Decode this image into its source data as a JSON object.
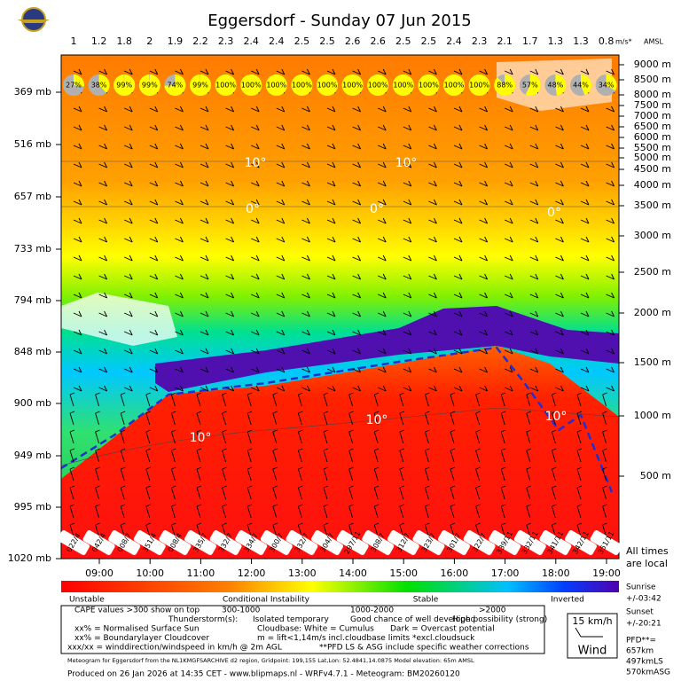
{
  "chart_data": {
    "type": "meteogram",
    "title": "Eggersdorf - Sunday 07 Jun 2015",
    "lift_values": [
      1,
      1.2,
      1.8,
      2,
      1.9,
      2.2,
      2.3,
      2.4,
      2.4,
      2.5,
      2.5,
      2.6,
      2.6,
      2.5,
      2.5,
      2.4,
      2.3,
      2.1,
      1.7,
      1.3,
      1.3,
      0.8
    ],
    "lift_unit": "m/s*",
    "altitude_reference": "AMSL",
    "cloudcover": [
      27,
      38,
      99,
      99,
      74,
      99,
      100,
      100,
      100,
      100,
      100,
      100,
      100,
      100,
      100,
      100,
      100,
      88,
      57,
      48,
      44,
      34
    ],
    "cloudcover_labels": [
      "27%",
      "38%",
      "99%",
      "99%",
      "74%",
      "99%",
      "100%",
      "100%",
      "100%",
      "100%",
      "100%",
      "100%",
      "100%",
      "100%",
      "100%",
      "100%",
      "100%",
      "88%",
      "57%",
      "48%",
      "44%",
      "34%"
    ],
    "pressure_labels": [
      "369 mb",
      "516 mb",
      "657 mb",
      "733 mb",
      "794 mb",
      "848 mb",
      "900 mb",
      "949 mb",
      "995 mb",
      "1020 mb"
    ],
    "altitude_labels": [
      "9000 m",
      "8500 m",
      "8000 m",
      "7500 m",
      "7000 m",
      "6500 m",
      "6000 m",
      "5500 m",
      "5000 m",
      "4500 m",
      "4000 m",
      "3500 m",
      "3000 m",
      "2500 m",
      "2000 m",
      "1500 m",
      "1000 m",
      "500 m"
    ],
    "times": [
      "09:00",
      "10:00",
      "11:00",
      "12:00",
      "13:00",
      "14:00",
      "15:00",
      "16:00",
      "17:00",
      "18:00",
      "19:00"
    ],
    "wind_labels": [
      "022/4",
      "042/4",
      "008/7",
      "351/4",
      "008/4",
      "335/7",
      "332/7",
      "334/7",
      "300/7",
      "332/7",
      "304/7",
      "297/11",
      "308/7",
      "312/7",
      "323/7",
      "301/7",
      "322/7",
      "339/11",
      "332/11",
      "341/11",
      "342/11",
      "351/11"
    ],
    "isotherm_labels": [
      "10°",
      "10°",
      "10°",
      "10°",
      "10°",
      "0°",
      "0°",
      "0°"
    ],
    "times_note": [
      "All times",
      "are local"
    ],
    "colorbar_labels": [
      "Unstable",
      "Conditional Instability",
      "Stable",
      "Inverted"
    ],
    "legend": [
      [
        "CAPE values >300 show on top",
        "300-1000",
        "1000-2000",
        ">2000"
      ],
      [
        "Thunderstorm(s):",
        "Isolated temporary",
        "Good chance of well developed",
        "High possibility (strong)"
      ],
      [
        "xx% = Normalised Surface Sun",
        "Cloudbase: White = Cumulus",
        "Dark = Overcast potential"
      ],
      [
        "xx% = Boundarylayer Cloudcover",
        "m = lift<1,14m/s incl.cloudbase limits *excl.cloudsuck"
      ],
      [
        "xxx/xx = winddirection/windspeed in km/h @ 2m AGL",
        "**PFD LS & ASG include specific weather corrections"
      ]
    ],
    "sun": [
      "Sunrise",
      "+/-03:42",
      "Sunset",
      "+/-20:21"
    ],
    "wind_scale": [
      "15 km/h",
      "Wind"
    ],
    "pfd": [
      "PFD**=",
      "657km",
      "497kmLS",
      "570kmASG"
    ],
    "footer_note": "Meteogram for Eggersdorf from the NL1KMGFSARCHIVE d2 region, Gridpoint: 199,155 Lat,Lon: 52.4841,14.0875 Model elevation: 65m AMSL",
    "produced": "Produced on 26 Jan 2026 at 14:35 CET - www.blipmaps.nl - WRFv4.7.1 - Meteogram: BM20260120"
  }
}
